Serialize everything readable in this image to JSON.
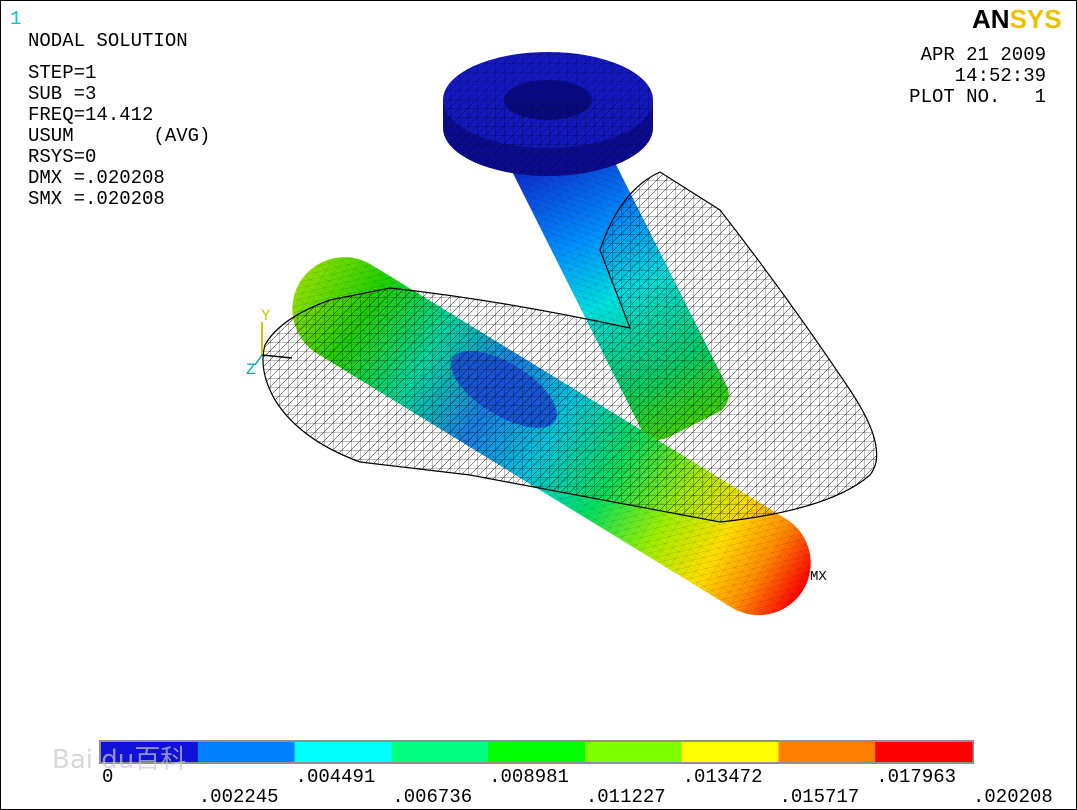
{
  "window_number": "1",
  "title": "NODAL SOLUTION",
  "info": [
    "STEP=1",
    "SUB =3",
    "FREQ=14.412",
    "USUM       (AVG)",
    "RSYS=0",
    "DMX =.020208",
    "SMX =.020208"
  ],
  "logo": {
    "part1": "AN",
    "part2": "SYS"
  },
  "date": "APR 21 2009",
  "time": "14:52:39",
  "plot_no": "PLOT NO.   1",
  "max_marker": "MX",
  "axes": {
    "y": "Y",
    "z": "Z"
  },
  "legend": {
    "colors": [
      "#1010d8",
      "#0080ff",
      "#00ffff",
      "#00ff80",
      "#00ff00",
      "#80ff00",
      "#ffff00",
      "#ff8000",
      "#ff0000"
    ],
    "labels": [
      "0",
      ".002245",
      ".004491",
      ".006736",
      ".008981",
      ".011227",
      ".013472",
      ".015717",
      ".017963",
      ".020208"
    ]
  },
  "watermark": "Bai du百科"
}
